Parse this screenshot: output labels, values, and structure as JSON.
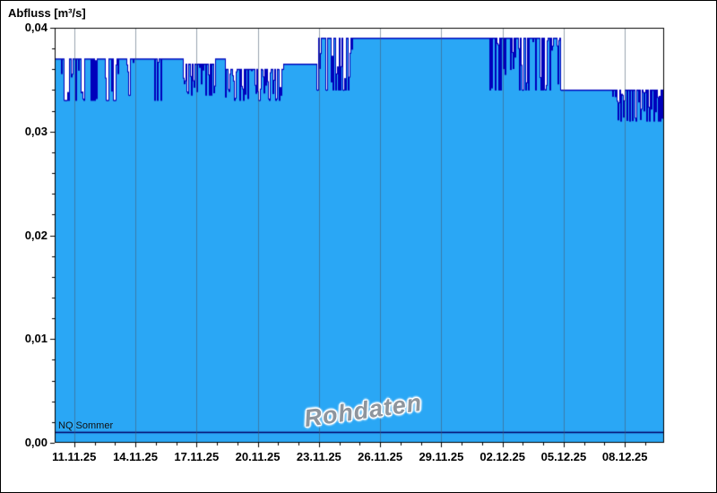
{
  "axis_title": "Abfluss [m³/s]",
  "watermark": {
    "text": "Rohdaten"
  },
  "threshold": {
    "label": "NQ Sommer",
    "value": 0.001
  },
  "colors": {
    "fill": "#2aa7f5",
    "line": "#0000bb",
    "grid": "#46596e",
    "frame": "#000000",
    "threshold": "#000066",
    "watermark": "#8e959d"
  },
  "chart_data": {
    "type": "area",
    "title": "",
    "ylabel": "Abfluss [m³/s]",
    "xlabel": "",
    "ylim": [
      0,
      0.04
    ],
    "yticks": [
      0,
      0.01,
      0.02,
      0.03,
      0.04
    ],
    "yticklabels": [
      "0,00",
      "0,01",
      "0,02",
      "0,03",
      "0,04"
    ],
    "xticklabels": [
      "11.11.25",
      "14.11.25",
      "17.11.25",
      "20.11.25",
      "23.11.25",
      "26.11.25",
      "29.11.25",
      "02.12.25",
      "05.12.25",
      "08.12.25"
    ],
    "x_first_tick_fraction": 0.032,
    "x_tick_step_fraction": 0.1004,
    "grid": "vertical-only",
    "legend": "none",
    "annotations": [
      {
        "text": "Rohdaten",
        "role": "watermark"
      },
      {
        "text": "NQ Sommer",
        "role": "threshold-label",
        "value": 0.001
      }
    ],
    "threshold_line": {
      "label": "NQ Sommer",
      "value": 0.001
    },
    "segments": [
      {
        "from": 0.0,
        "to": 0.007,
        "mode": "solid",
        "level": 0.037
      },
      {
        "from": 0.007,
        "to": 0.103,
        "mode": "noisy",
        "min": 0.033,
        "max": 0.037
      },
      {
        "from": 0.103,
        "to": 0.114,
        "mode": "solid",
        "level": 0.037
      },
      {
        "from": 0.114,
        "to": 0.13,
        "mode": "noisy",
        "min": 0.0335,
        "max": 0.037
      },
      {
        "from": 0.13,
        "to": 0.163,
        "mode": "solid",
        "level": 0.037
      },
      {
        "from": 0.163,
        "to": 0.175,
        "mode": "noisy",
        "min": 0.033,
        "max": 0.037
      },
      {
        "from": 0.175,
        "to": 0.21,
        "mode": "solid",
        "level": 0.037
      },
      {
        "from": 0.21,
        "to": 0.262,
        "mode": "noisy",
        "min": 0.0335,
        "max": 0.0365
      },
      {
        "from": 0.262,
        "to": 0.278,
        "mode": "solid",
        "level": 0.037
      },
      {
        "from": 0.278,
        "to": 0.374,
        "mode": "noisy",
        "min": 0.033,
        "max": 0.036
      },
      {
        "from": 0.374,
        "to": 0.428,
        "mode": "solid",
        "level": 0.0365
      },
      {
        "from": 0.428,
        "to": 0.492,
        "mode": "noisy",
        "min": 0.034,
        "max": 0.039
      },
      {
        "from": 0.492,
        "to": 0.712,
        "mode": "solid",
        "level": 0.039
      },
      {
        "from": 0.712,
        "to": 0.83,
        "mode": "noisy",
        "min": 0.034,
        "max": 0.039
      },
      {
        "from": 0.83,
        "to": 0.912,
        "mode": "solid",
        "level": 0.034
      },
      {
        "from": 0.912,
        "to": 1.001,
        "mode": "noisy",
        "min": 0.031,
        "max": 0.034
      }
    ]
  }
}
